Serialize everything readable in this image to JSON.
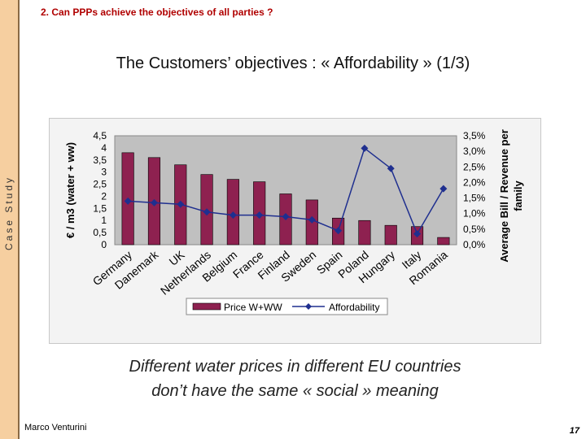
{
  "sidebar": {
    "label": "Case Study"
  },
  "header": {
    "title": "2.  Can PPPs achieve the objectives of all parties ?"
  },
  "slide": {
    "title": "The Customers’ objectives : « Affordability » (1/3)",
    "caption_line1": "Different water prices in different EU countries",
    "caption_line2": "don’t have the same « social » meaning",
    "author": "Marco Venturini",
    "page_number": "17"
  },
  "colors": {
    "bar_fill": "#8e2150",
    "line_stroke": "#1f2f8f",
    "plot_bg": "#c0c0c0",
    "header_red": "#b00000",
    "side_band": "#f6cfa0"
  },
  "chart_data": {
    "type": "bar",
    "categories": [
      "Germany",
      "Danemark",
      "UK",
      "Netherlands",
      "Belgium",
      "France",
      "Finland",
      "Sweden",
      "Spain",
      "Poland",
      "Hungary",
      "Italy",
      "Romania"
    ],
    "series": [
      {
        "name": "Price W+WW",
        "type": "bar",
        "axis": "left",
        "values": [
          3.8,
          3.6,
          3.3,
          2.9,
          2.7,
          2.6,
          2.1,
          1.85,
          1.1,
          1.0,
          0.8,
          0.75,
          0.3
        ]
      },
      {
        "name": "Affordability",
        "type": "line",
        "axis": "right",
        "values": [
          1.4,
          1.35,
          1.3,
          1.05,
          0.95,
          0.95,
          0.9,
          0.8,
          0.45,
          3.1,
          2.45,
          0.35,
          1.8
        ]
      }
    ],
    "ylabel": "€ / m3 (water + ww)",
    "y2label": "Average Bill / Revenue per family",
    "ylim": [
      0,
      4.5
    ],
    "y2lim": [
      0,
      3.5
    ],
    "yticks": [
      "0",
      "0,5",
      "1",
      "1,5",
      "2",
      "2,5",
      "3",
      "3,5",
      "4",
      "4,5"
    ],
    "y2ticks": [
      "0,0%",
      "0,5%",
      "1,0%",
      "1,5%",
      "2,0%",
      "2,5%",
      "3,0%",
      "3,5%"
    ],
    "grid": false,
    "legend": "bottom"
  }
}
